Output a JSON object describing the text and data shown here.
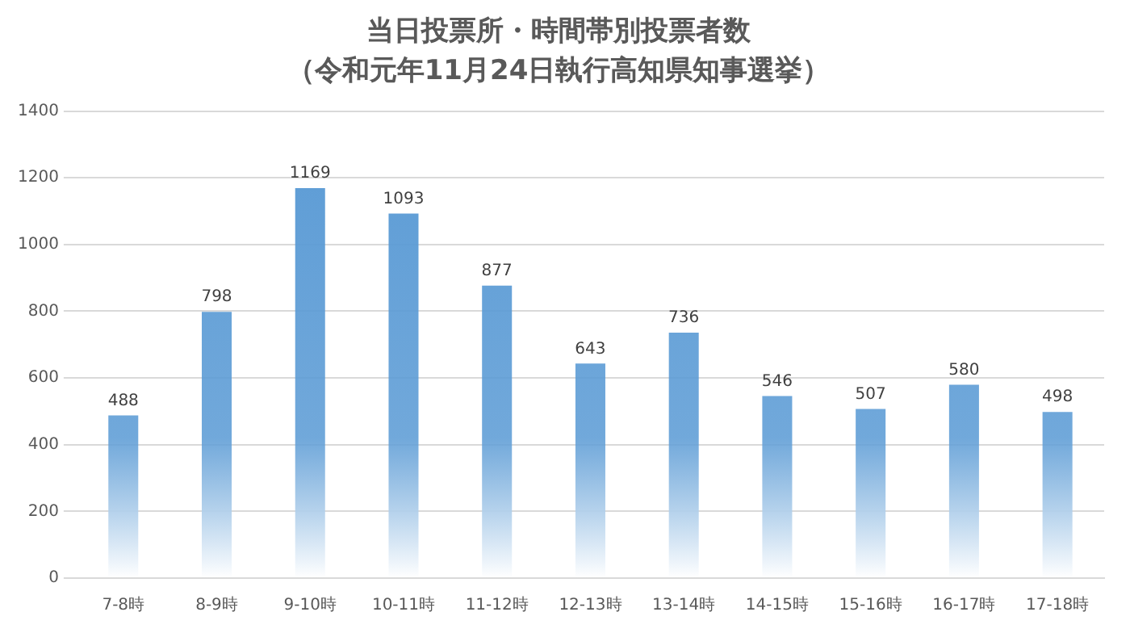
{
  "chart_data": {
    "type": "bar",
    "title": "当日投票所・時間帯別投票者数",
    "subtitle": "（令和元年11月24日執行高知県知事選挙）",
    "categories": [
      "7-8時",
      "8-9時",
      "9-10時",
      "10-11時",
      "11-12時",
      "12-13時",
      "13-14時",
      "14-15時",
      "15-16時",
      "16-17時",
      "17-18時"
    ],
    "values": [
      488,
      798,
      1169,
      1093,
      877,
      643,
      736,
      546,
      507,
      580,
      498
    ],
    "color": "#5b9bd5",
    "ylim": [
      0,
      1400
    ],
    "yticks": [
      0,
      200,
      400,
      600,
      800,
      1000,
      1200,
      1400
    ],
    "grid": "y",
    "legend": false,
    "data_labels": true
  }
}
